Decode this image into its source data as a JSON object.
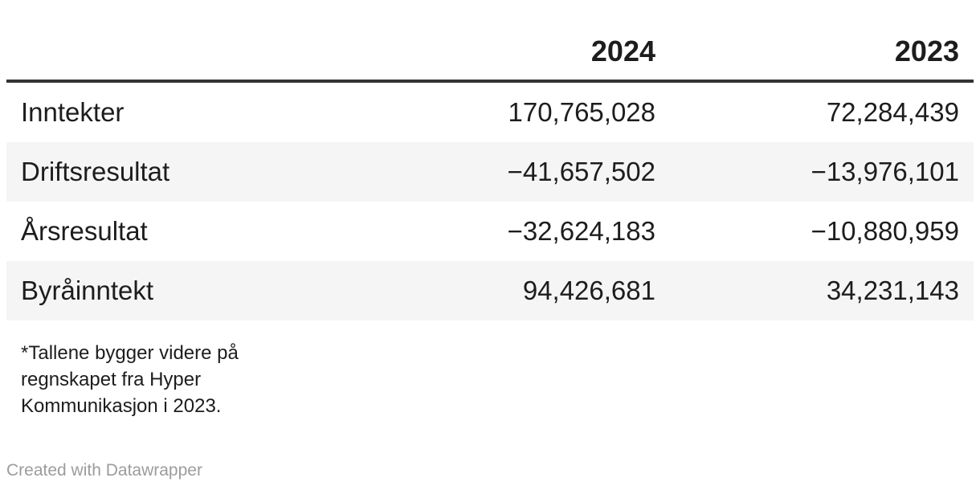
{
  "colors": {
    "header_rule": "#333333",
    "row_stripe": "#f5f5f5",
    "text": "#1d1d1d",
    "muted": "#9c9c9c",
    "background": "#ffffff"
  },
  "table": {
    "header": {
      "label": "",
      "col2024": "2024",
      "col2023": "2023"
    },
    "rows": [
      {
        "label": "Inntekter",
        "v2024": "170,765,028",
        "v2023": "72,284,439"
      },
      {
        "label": "Driftsresultat",
        "v2024": "−41,657,502",
        "v2023": "−13,976,101"
      },
      {
        "label": "Årsresultat",
        "v2024": "−32,624,183",
        "v2023": "−10,880,959"
      },
      {
        "label": "Byråinntekt",
        "v2024": "94,426,681",
        "v2023": "34,231,143"
      }
    ]
  },
  "note": "*Tallene bygger videre på\nregnskapet fra Hyper\nKommunikasjon i 2023.",
  "footer": {
    "credit": "Created with Datawrapper"
  },
  "chart_data": {
    "type": "table",
    "columns": [
      "",
      "2024",
      "2023"
    ],
    "row_labels": [
      "Inntekter",
      "Driftsresultat",
      "Årsresultat",
      "Byråinntekt"
    ],
    "series": [
      {
        "name": "2024",
        "values": [
          170765028,
          -41657502,
          -32624183,
          94426681
        ]
      },
      {
        "name": "2023",
        "values": [
          72284439,
          -13976101,
          -10880959,
          34231143
        ]
      }
    ],
    "note": "*Tallene bygger videre på regnskapet fra Hyper Kommunikasjon i 2023.",
    "credit": "Created with Datawrapper",
    "layout_hints": {
      "striped_rows": true,
      "numeric_alignment": "right",
      "header_rule": true
    }
  }
}
